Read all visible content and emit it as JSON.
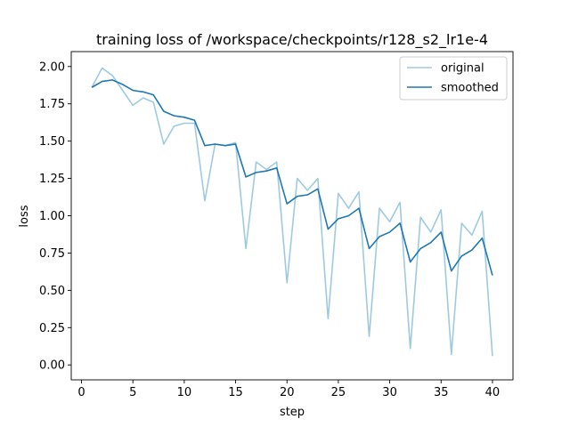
{
  "chart_data": {
    "type": "line",
    "title": "training loss of /workspace/checkpoints/r128_s2_lr1e-4",
    "xlabel": "step",
    "ylabel": "loss",
    "xlim": [
      -1,
      42
    ],
    "ylim": [
      -0.1,
      2.1
    ],
    "xticks": [
      0,
      5,
      10,
      15,
      20,
      25,
      30,
      35,
      40
    ],
    "yticks": [
      0.0,
      0.25,
      0.5,
      0.75,
      1.0,
      1.25,
      1.5,
      1.75,
      2.0
    ],
    "xtick_labels": [
      "0",
      "5",
      "10",
      "15",
      "20",
      "25",
      "30",
      "35",
      "40"
    ],
    "ytick_labels": [
      "0.00",
      "0.25",
      "0.50",
      "0.75",
      "1.00",
      "1.25",
      "1.50",
      "1.75",
      "2.00"
    ],
    "grid": false,
    "legend_position": "top-right",
    "x": [
      1,
      2,
      3,
      4,
      5,
      6,
      7,
      8,
      9,
      10,
      11,
      12,
      13,
      14,
      15,
      16,
      17,
      18,
      19,
      20,
      21,
      22,
      23,
      24,
      25,
      26,
      27,
      28,
      29,
      30,
      31,
      32,
      33,
      34,
      35,
      36,
      37,
      38,
      39,
      40
    ],
    "series": [
      {
        "name": "original",
        "color": "#9ecae1",
        "values": [
          1.86,
          1.99,
          1.94,
          1.84,
          1.74,
          1.79,
          1.76,
          1.48,
          1.6,
          1.62,
          1.62,
          1.1,
          1.48,
          1.47,
          1.49,
          0.78,
          1.36,
          1.31,
          1.36,
          0.55,
          1.25,
          1.17,
          1.25,
          0.31,
          1.15,
          1.05,
          1.16,
          0.19,
          1.05,
          0.96,
          1.09,
          0.11,
          0.99,
          0.89,
          1.04,
          0.07,
          0.95,
          0.87,
          1.03,
          0.06
        ]
      },
      {
        "name": "smoothed",
        "color": "#1f77b4",
        "values": [
          1.86,
          1.9,
          1.91,
          1.88,
          1.84,
          1.83,
          1.81,
          1.7,
          1.67,
          1.66,
          1.64,
          1.47,
          1.48,
          1.47,
          1.48,
          1.26,
          1.29,
          1.3,
          1.32,
          1.08,
          1.13,
          1.14,
          1.18,
          0.91,
          0.98,
          1.0,
          1.05,
          0.78,
          0.86,
          0.89,
          0.95,
          0.69,
          0.78,
          0.82,
          0.89,
          0.63,
          0.73,
          0.77,
          0.85,
          0.6
        ]
      }
    ]
  }
}
